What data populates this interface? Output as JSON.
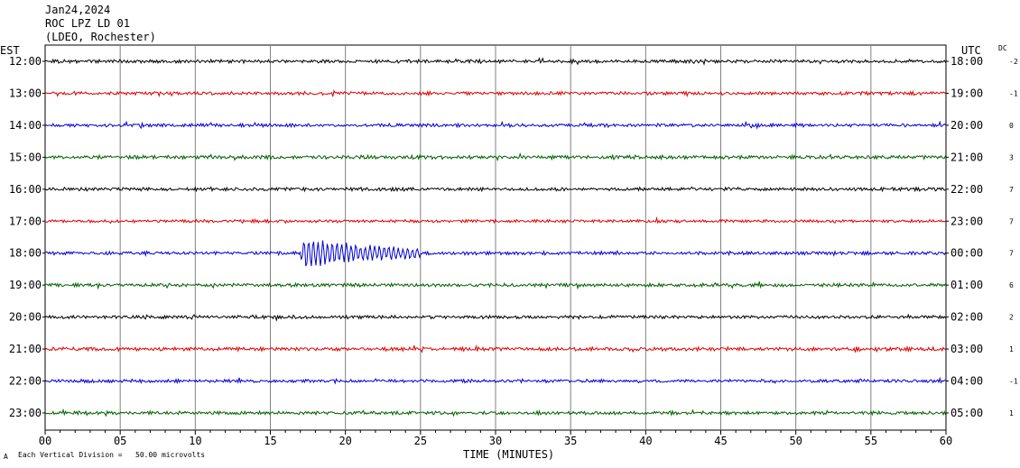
{
  "header": {
    "date": "Jan24,2024",
    "station": "ROC LPZ LD 01",
    "network": "(LDEO, Rochester)"
  },
  "labels": {
    "left_tz": "EST",
    "right_tz": "UTC",
    "dc": "DC",
    "footer_scale": "Each Vertical Division =   50.00 microvolts",
    "footer_mark": "A"
  },
  "chart_data": {
    "type": "line",
    "title": "ROC LPZ LD 01",
    "xlabel": "TIME (MINUTES)",
    "xlim": [
      0,
      60
    ],
    "x_ticks": [
      "00",
      "05",
      "10",
      "15",
      "20",
      "25",
      "30",
      "35",
      "40",
      "45",
      "50",
      "55",
      "60"
    ],
    "grid": true,
    "rows": [
      {
        "est": "12:00",
        "utc": "18:00",
        "dc": "-2",
        "color": "#000000",
        "amplitude": 1.0
      },
      {
        "est": "13:00",
        "utc": "19:00",
        "dc": "-1",
        "color": "#e00000",
        "amplitude": 1.0
      },
      {
        "est": "14:00",
        "utc": "20:00",
        "dc": "0",
        "color": "#0000d0",
        "amplitude": 1.0
      },
      {
        "est": "15:00",
        "utc": "21:00",
        "dc": "3",
        "color": "#006000",
        "amplitude": 1.1
      },
      {
        "est": "16:00",
        "utc": "22:00",
        "dc": "7",
        "color": "#000000",
        "amplitude": 1.0
      },
      {
        "est": "17:00",
        "utc": "23:00",
        "dc": "7",
        "color": "#e00000",
        "amplitude": 0.9
      },
      {
        "est": "18:00",
        "utc": "00:00",
        "dc": "7",
        "color": "#0000d0",
        "amplitude": 1.0,
        "event": {
          "start_min": 17.0,
          "end_min": 25.0
        }
      },
      {
        "est": "19:00",
        "utc": "01:00",
        "dc": "6",
        "color": "#006000",
        "amplitude": 1.0
      },
      {
        "est": "20:00",
        "utc": "02:00",
        "dc": "2",
        "color": "#000000",
        "amplitude": 1.0
      },
      {
        "est": "21:00",
        "utc": "03:00",
        "dc": "1",
        "color": "#e00000",
        "amplitude": 1.1
      },
      {
        "est": "22:00",
        "utc": "04:00",
        "dc": "-1",
        "color": "#0000d0",
        "amplitude": 1.0
      },
      {
        "est": "23:00",
        "utc": "05:00",
        "dc": "1",
        "color": "#006000",
        "amplitude": 1.0
      }
    ]
  }
}
